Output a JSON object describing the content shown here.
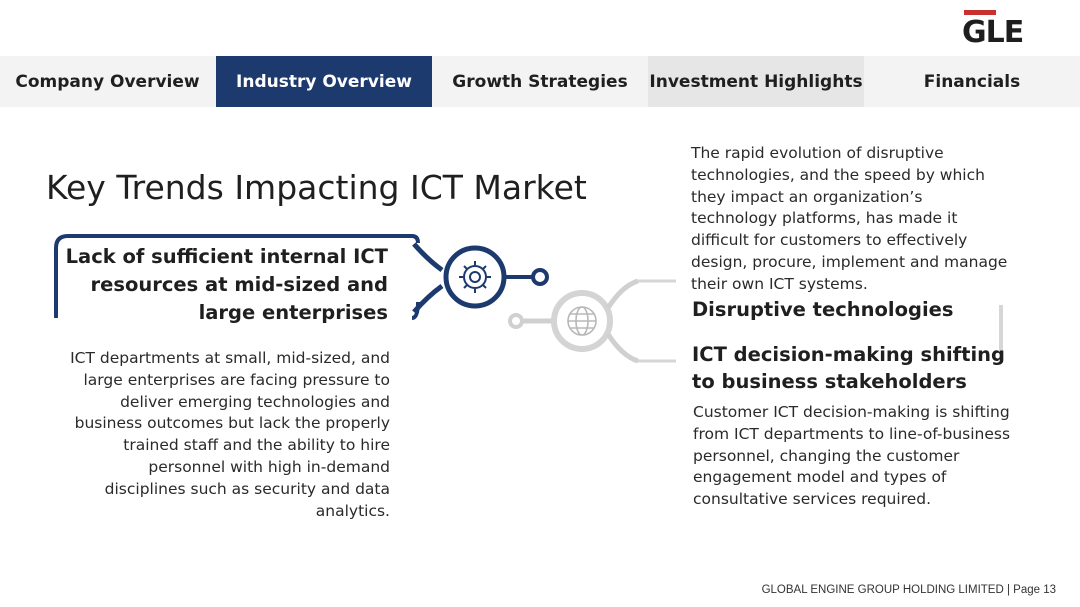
{
  "logo": {
    "text": "GLE",
    "accent_color": "#c8312f"
  },
  "nav": {
    "tabs": [
      {
        "label": "Company Overview"
      },
      {
        "label": "Industry Overview"
      },
      {
        "label": "Growth Strategies"
      },
      {
        "label": "Investment Highlights"
      },
      {
        "label": "Financials"
      }
    ],
    "active_color": "#1d3a6e"
  },
  "title": "Key Trends Impacting ICT Market",
  "trends": {
    "left": {
      "heading": "Lack of sufficient internal ICT resources at mid-sized and large enterprises",
      "body": "ICT departments at small, mid-sized, and large enterprises are facing pressure to deliver emerging technologies and business outcomes but lack the properly trained staff and the ability to hire personnel with high in-demand disciplines such as security and data analytics.",
      "icon": "gear-icon"
    },
    "center_icon": "globe-icon",
    "right_top": {
      "heading": "Disruptive technologies",
      "body": "The rapid evolution of disruptive technologies, and the speed by which they impact an organization’s technology platforms, has made it difficult for customers to effectively design, procure, implement and manage their own ICT systems."
    },
    "right_bottom": {
      "heading": "ICT decision-making shifting to business stakeholders",
      "body": "Customer ICT decision-making is shifting from ICT departments to line-of-business personnel, changing the customer engagement model and types of consultative services required."
    }
  },
  "footer": "GLOBAL ENGINE GROUP HOLDING LIMITED | Page 13"
}
